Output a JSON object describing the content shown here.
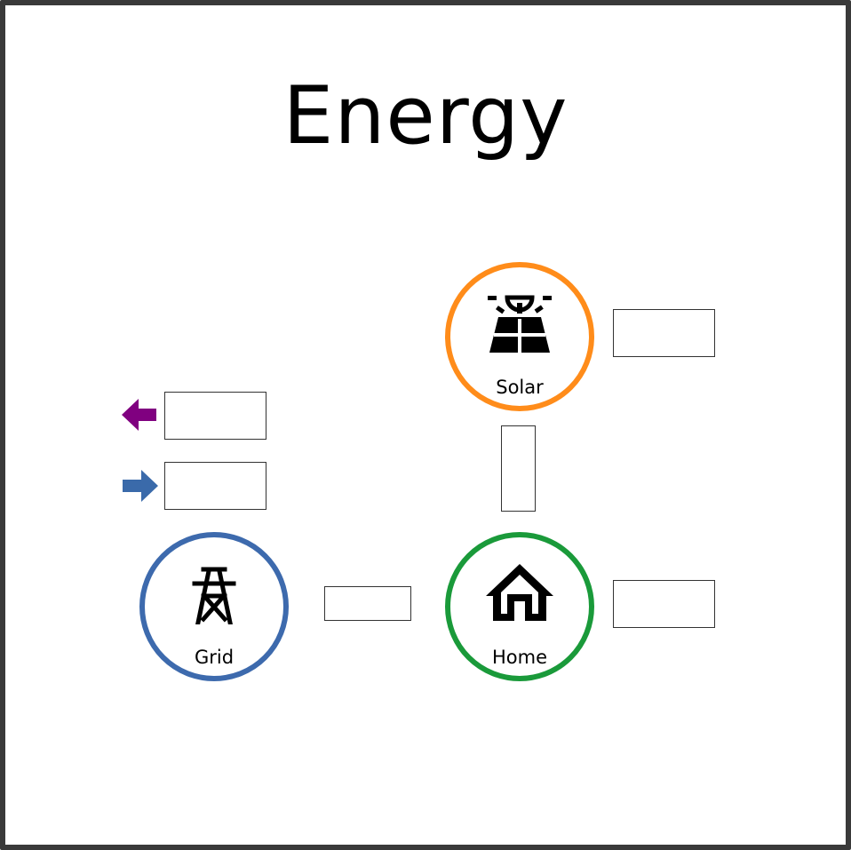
{
  "title": "Energy",
  "colors": {
    "solar": "#ff8c1a",
    "grid": "#3d6aad",
    "home": "#1a9a3a",
    "grid_export_arrow": "#800080",
    "grid_import_arrow": "#3a6aaa"
  },
  "nodes": {
    "solar": {
      "label": "Solar",
      "icon": "solar-panel-icon",
      "value": ""
    },
    "grid": {
      "label": "Grid",
      "icon": "transmission-tower-icon",
      "export_value": "",
      "import_value": ""
    },
    "home": {
      "label": "Home",
      "icon": "home-icon",
      "value": ""
    }
  },
  "flows": {
    "solar_to_home": "",
    "grid_to_home": ""
  }
}
